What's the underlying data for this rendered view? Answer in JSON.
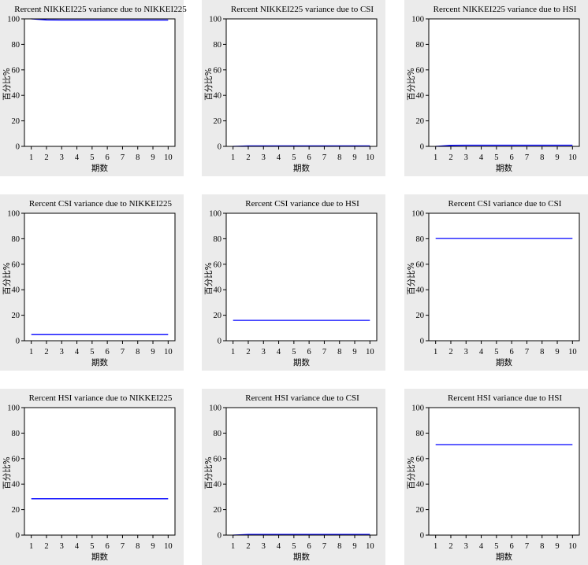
{
  "chart_data": [
    {
      "type": "line",
      "title": "Rercent NIKKEI225 variance due to NIKKEI225",
      "xlabel": "期数",
      "ylabel": "百分比%",
      "ylim": [
        0,
        100
      ],
      "x": [
        1,
        2,
        3,
        4,
        5,
        6,
        7,
        8,
        9,
        10
      ],
      "series": [
        {
          "color": "#0000ff",
          "values": [
            100,
            99.2,
            99.1,
            99.1,
            99.1,
            99.1,
            99.1,
            99.1,
            99.1,
            99.1
          ]
        }
      ]
    },
    {
      "type": "line",
      "title": "Rercent NIKKEI225 variance due to CSI",
      "xlabel": "期数",
      "ylabel": "百分比%",
      "ylim": [
        0,
        100
      ],
      "x": [
        1,
        2,
        3,
        4,
        5,
        6,
        7,
        8,
        9,
        10
      ],
      "series": [
        {
          "color": "#0000ff",
          "values": [
            0,
            0.4,
            0.4,
            0.4,
            0.4,
            0.4,
            0.4,
            0.4,
            0.4,
            0.4
          ]
        }
      ]
    },
    {
      "type": "line",
      "title": "Rercent NIKKEI225 variance due to HSI",
      "xlabel": "期数",
      "ylabel": "百分比%",
      "ylim": [
        0,
        100
      ],
      "x": [
        1,
        2,
        3,
        4,
        5,
        6,
        7,
        8,
        9,
        10
      ],
      "series": [
        {
          "color": "#0000ff",
          "values": [
            0,
            0.8,
            0.9,
            0.9,
            0.9,
            0.9,
            0.9,
            0.9,
            0.9,
            0.9
          ]
        }
      ]
    },
    {
      "type": "line",
      "title": "Rercent CSI variance due to NIKKEI225",
      "xlabel": "期数",
      "ylabel": "百分比%",
      "ylim": [
        0,
        100
      ],
      "x": [
        1,
        2,
        3,
        4,
        5,
        6,
        7,
        8,
        9,
        10
      ],
      "series": [
        {
          "color": "#0000ff",
          "values": [
            4.8,
            4.8,
            4.8,
            4.8,
            4.8,
            4.8,
            4.8,
            4.8,
            4.8,
            4.8
          ]
        }
      ]
    },
    {
      "type": "line",
      "title": "Rercent CSI variance due to HSI",
      "xlabel": "期数",
      "ylabel": "百分比%",
      "ylim": [
        0,
        100
      ],
      "x": [
        1,
        2,
        3,
        4,
        5,
        6,
        7,
        8,
        9,
        10
      ],
      "series": [
        {
          "color": "#0000ff",
          "values": [
            16,
            16,
            16,
            16,
            16,
            16,
            16,
            16,
            16,
            16
          ]
        }
      ]
    },
    {
      "type": "line",
      "title": "Rercent CSI variance due to CSI",
      "xlabel": "期数",
      "ylabel": "百分比%",
      "ylim": [
        0,
        100
      ],
      "x": [
        1,
        2,
        3,
        4,
        5,
        6,
        7,
        8,
        9,
        10
      ],
      "series": [
        {
          "color": "#0000ff",
          "values": [
            80.2,
            80.2,
            80.2,
            80.2,
            80.2,
            80.2,
            80.2,
            80.2,
            80.2,
            80.2
          ]
        }
      ]
    },
    {
      "type": "line",
      "title": "Rercent HSI variance due to NIKKEI225",
      "xlabel": "期数",
      "ylabel": "百分比%",
      "ylim": [
        0,
        100
      ],
      "x": [
        1,
        2,
        3,
        4,
        5,
        6,
        7,
        8,
        9,
        10
      ],
      "series": [
        {
          "color": "#0000ff",
          "values": [
            28.5,
            28.5,
            28.5,
            28.5,
            28.5,
            28.5,
            28.5,
            28.5,
            28.5,
            28.5
          ]
        }
      ]
    },
    {
      "type": "line",
      "title": "Rercent HSI variance due to CSI",
      "xlabel": "期数",
      "ylabel": "百分比%",
      "ylim": [
        0,
        100
      ],
      "x": [
        1,
        2,
        3,
        4,
        5,
        6,
        7,
        8,
        9,
        10
      ],
      "series": [
        {
          "color": "#0000ff",
          "values": [
            0,
            0.5,
            0.5,
            0.5,
            0.5,
            0.5,
            0.5,
            0.5,
            0.5,
            0.5
          ]
        }
      ]
    },
    {
      "type": "line",
      "title": "Rercent HSI variance due to HSI",
      "xlabel": "期数",
      "ylabel": "百分比%",
      "ylim": [
        0,
        100
      ],
      "x": [
        1,
        2,
        3,
        4,
        5,
        6,
        7,
        8,
        9,
        10
      ],
      "series": [
        {
          "color": "#0000ff",
          "values": [
            71,
            71,
            71,
            71,
            71,
            71,
            71,
            71,
            71,
            71
          ]
        }
      ]
    }
  ]
}
